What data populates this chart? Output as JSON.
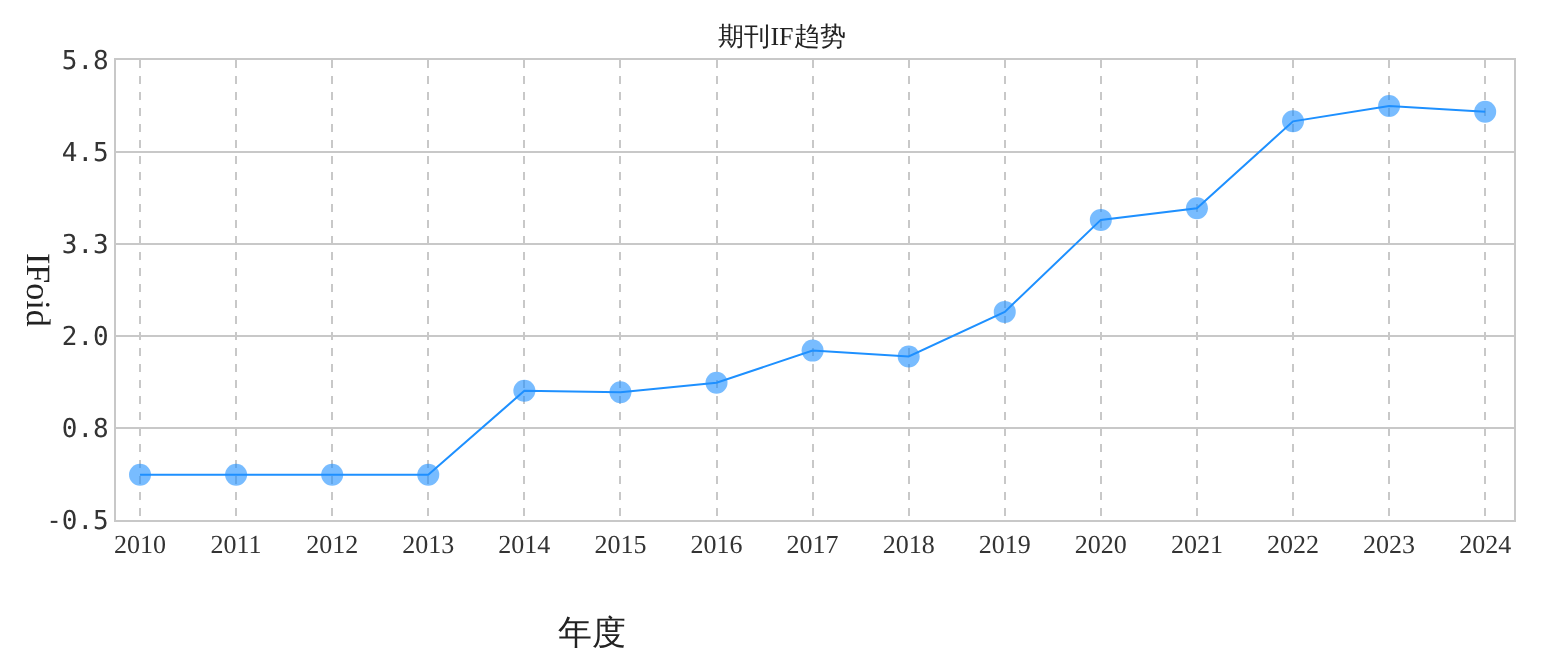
{
  "chart_data": {
    "type": "line",
    "title": "期刊IF趋势",
    "xlabel": "年度",
    "ylabel": "IFoid",
    "categories": [
      "2010",
      "2011",
      "2012",
      "2013",
      "2014",
      "2015",
      "2016",
      "2017",
      "2018",
      "2019",
      "2020",
      "2021",
      "2022",
      "2023",
      "2024"
    ],
    "series": [
      {
        "color": "#1e90ff",
        "values": [
          0.12,
          0.12,
          0.12,
          0.12,
          1.27,
          1.25,
          1.38,
          1.82,
          1.74,
          2.35,
          3.61,
          3.77,
          4.96,
          5.17,
          5.09
        ]
      }
    ],
    "ylim": [
      -0.5,
      5.8
    ],
    "yticks": [
      -0.5,
      {
        "value": 0.76,
        "label": "0.8"
      },
      {
        "value": 2.02,
        "label": "2.0"
      },
      {
        "value": 3.28,
        "label": "3.3"
      },
      {
        "value": 4.54,
        "label": "4.5"
      },
      5.8
    ],
    "grid": true,
    "marker": "circle",
    "line_style": "solid"
  }
}
